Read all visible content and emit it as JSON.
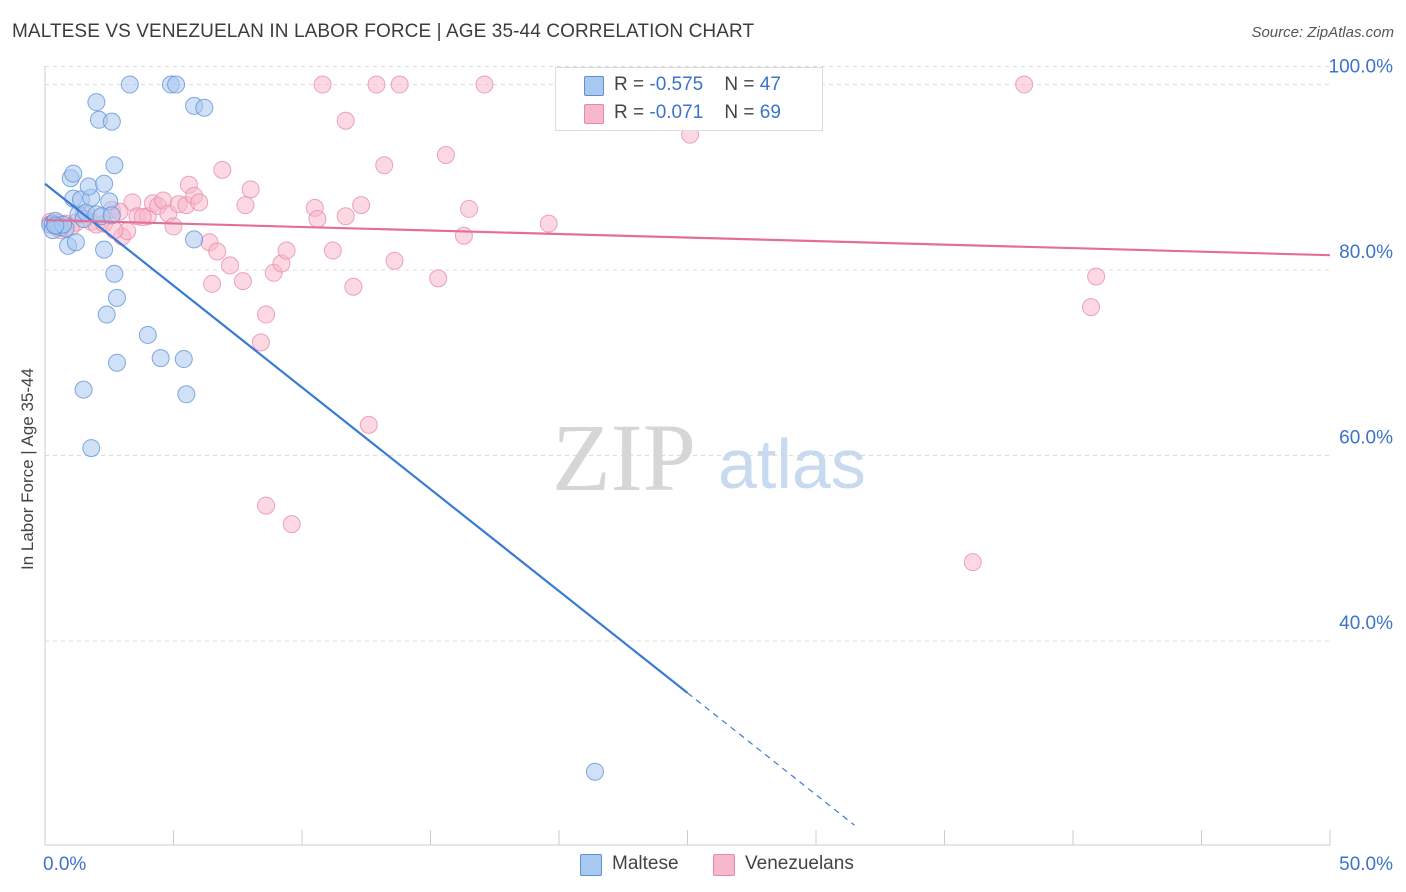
{
  "header": {
    "title": "MALTESE VS VENEZUELAN IN LABOR FORCE | AGE 35-44 CORRELATION CHART",
    "source": "Source: ZipAtlas.com"
  },
  "watermark": {
    "zip": "ZIP",
    "atlas": "atlas"
  },
  "legend": {
    "rows": [
      {
        "r_label": "R = ",
        "r_value": "-0.575",
        "n_label": "N = ",
        "n_value": "47"
      },
      {
        "r_label": "R = ",
        "r_value": "-0.071",
        "n_label": "N = ",
        "n_value": "69"
      }
    ]
  },
  "colors": {
    "maltese_fill": "#a9c8f0",
    "maltese_stroke": "#5b8fd6",
    "maltese_line": "#3a7bd5",
    "venezuelan_fill": "#f7b8cb",
    "venezuelan_stroke": "#e58aa8",
    "venezuelan_line": "#e36f98",
    "axis_label": "#3b74c9",
    "grid": "#dcdcdc"
  },
  "chart_data": {
    "type": "scatter",
    "title": "MALTESE VS VENEZUELAN IN LABOR FORCE | AGE 35-44 CORRELATION CHART",
    "xlabel": "",
    "ylabel": "In Labor Force | Age 35-44",
    "xlim": [
      0,
      50
    ],
    "ylim": [
      18,
      102
    ],
    "x_tick_labels": [
      "0.0%",
      "50.0%"
    ],
    "y_ticks": [
      40,
      60,
      80,
      100
    ],
    "y_tick_labels": [
      "40.0%",
      "60.0%",
      "80.0%",
      "100.0%"
    ],
    "grid": true,
    "legend_position": "top-center",
    "series": [
      {
        "name": "Maltese",
        "r": -0.575,
        "n": 47,
        "trend": {
          "x0": 0,
          "y0": 89.3,
          "x1": 25,
          "y1": 34.4,
          "x_dash_end": 31.5
        },
        "points": [
          [
            0.2,
            84.9
          ],
          [
            0.3,
            85.0
          ],
          [
            0.5,
            84.7
          ],
          [
            0.4,
            85.3
          ],
          [
            0.6,
            84.6
          ],
          [
            0.8,
            84.5
          ],
          [
            0.3,
            84.3
          ],
          [
            0.7,
            84.9
          ],
          [
            0.9,
            82.6
          ],
          [
            1.2,
            83.0
          ],
          [
            1.0,
            89.9
          ],
          [
            1.1,
            87.7
          ],
          [
            1.3,
            86.0
          ],
          [
            1.5,
            85.5
          ],
          [
            1.4,
            87.6
          ],
          [
            1.6,
            86.2
          ],
          [
            1.8,
            87.8
          ],
          [
            1.7,
            89.0
          ],
          [
            2.0,
            86.0
          ],
          [
            2.2,
            85.8
          ],
          [
            2.3,
            89.3
          ],
          [
            2.5,
            87.4
          ],
          [
            2.6,
            85.9
          ],
          [
            1.1,
            90.4
          ],
          [
            2.7,
            91.3
          ],
          [
            2.0,
            98.1
          ],
          [
            2.1,
            96.2
          ],
          [
            2.6,
            96.0
          ],
          [
            3.3,
            100.0
          ],
          [
            4.9,
            100.0
          ],
          [
            5.1,
            100.0
          ],
          [
            5.8,
            97.7
          ],
          [
            6.2,
            97.5
          ],
          [
            2.3,
            82.2
          ],
          [
            2.7,
            79.6
          ],
          [
            2.8,
            77.0
          ],
          [
            2.4,
            75.2
          ],
          [
            2.8,
            70.0
          ],
          [
            4.0,
            73.0
          ],
          [
            4.5,
            70.5
          ],
          [
            5.4,
            70.4
          ],
          [
            1.5,
            67.1
          ],
          [
            5.5,
            66.6
          ],
          [
            1.8,
            60.8
          ],
          [
            5.8,
            83.3
          ],
          [
            21.4,
            25.9
          ],
          [
            0.4,
            84.8
          ]
        ]
      },
      {
        "name": "Venezuelans",
        "r": -0.071,
        "n": 69,
        "trend": {
          "x0": 0,
          "y0": 85.4,
          "x1": 50,
          "y1": 81.6
        },
        "points": [
          [
            0.2,
            85.2
          ],
          [
            0.4,
            84.7
          ],
          [
            0.6,
            84.3
          ],
          [
            0.8,
            85.0
          ],
          [
            1.2,
            85.1
          ],
          [
            1.5,
            86.0
          ],
          [
            1.8,
            85.2
          ],
          [
            2.0,
            84.9
          ],
          [
            2.3,
            85.0
          ],
          [
            2.6,
            86.5
          ],
          [
            3.0,
            83.6
          ],
          [
            3.2,
            84.2
          ],
          [
            3.4,
            87.3
          ],
          [
            3.6,
            85.8
          ],
          [
            4.0,
            85.8
          ],
          [
            4.2,
            87.2
          ],
          [
            4.4,
            86.9
          ],
          [
            4.6,
            87.5
          ],
          [
            4.8,
            86.1
          ],
          [
            5.0,
            84.7
          ],
          [
            5.2,
            87.1
          ],
          [
            5.5,
            87.0
          ],
          [
            5.6,
            89.2
          ],
          [
            5.8,
            88.0
          ],
          [
            6.0,
            87.3
          ],
          [
            6.4,
            83.0
          ],
          [
            6.7,
            82.0
          ],
          [
            6.9,
            90.8
          ],
          [
            7.2,
            80.5
          ],
          [
            6.5,
            78.5
          ],
          [
            7.7,
            78.8
          ],
          [
            7.8,
            87.0
          ],
          [
            8.0,
            88.7
          ],
          [
            8.4,
            72.2
          ],
          [
            8.6,
            75.2
          ],
          [
            8.9,
            79.7
          ],
          [
            9.2,
            80.7
          ],
          [
            9.4,
            82.1
          ],
          [
            10.5,
            86.7
          ],
          [
            10.6,
            85.5
          ],
          [
            11.2,
            82.1
          ],
          [
            11.7,
            85.8
          ],
          [
            12.3,
            87.0
          ],
          [
            12.0,
            78.2
          ],
          [
            13.2,
            91.3
          ],
          [
            13.6,
            81.0
          ],
          [
            15.3,
            79.1
          ],
          [
            15.6,
            92.4
          ],
          [
            16.3,
            83.7
          ],
          [
            16.5,
            86.6
          ],
          [
            19.6,
            85.0
          ],
          [
            12.6,
            63.3
          ],
          [
            10.8,
            100.0
          ],
          [
            12.9,
            100.0
          ],
          [
            13.8,
            100.0
          ],
          [
            17.1,
            100.0
          ],
          [
            11.7,
            96.1
          ],
          [
            25.1,
            94.6
          ],
          [
            38.1,
            100.0
          ],
          [
            40.9,
            79.3
          ],
          [
            40.7,
            76.0
          ],
          [
            8.6,
            54.6
          ],
          [
            9.6,
            52.6
          ],
          [
            36.1,
            48.5
          ],
          [
            2.9,
            86.3
          ],
          [
            3.8,
            85.7
          ],
          [
            1.0,
            84.6
          ],
          [
            2.7,
            84.3
          ],
          [
            0.5,
            85.1
          ]
        ]
      }
    ]
  }
}
